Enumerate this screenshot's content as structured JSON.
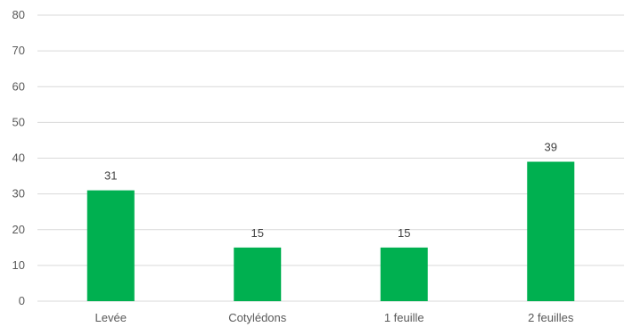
{
  "chart_data": {
    "type": "bar",
    "title": "",
    "xlabel": "",
    "ylabel": "",
    "categories": [
      "Levée",
      "Cotylédons",
      "1 feuille",
      "2 feuilles"
    ],
    "values": [
      31,
      15,
      15,
      39
    ],
    "ylim": [
      0,
      80
    ],
    "yticks": [
      0,
      10,
      20,
      30,
      40,
      50,
      60,
      70,
      80
    ],
    "data_labels": true,
    "grid": true,
    "legend": "none",
    "bar_color": "#00b050",
    "grid_color": "#d9d9d9",
    "text_color": "#595959"
  }
}
